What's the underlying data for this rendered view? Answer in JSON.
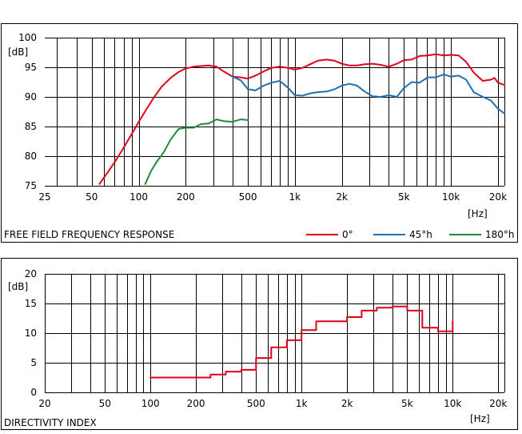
{
  "chart_data": [
    {
      "type": "line",
      "title": "FREE FIELD FREQUENCY RESPONSE",
      "xlabel": "[Hz]",
      "ylabel": "[dB]",
      "x_scale": "log",
      "xlim": [
        25,
        22000
      ],
      "ylim": [
        75,
        100
      ],
      "x_ticks": [
        {
          "v": 25,
          "t": "25"
        },
        {
          "v": 50,
          "t": "50"
        },
        {
          "v": 100,
          "t": "100"
        },
        {
          "v": 200,
          "t": "200"
        },
        {
          "v": 500,
          "t": "500"
        },
        {
          "v": 1000,
          "t": "1k"
        },
        {
          "v": 2000,
          "t": "2k"
        },
        {
          "v": 5000,
          "t": "5k"
        },
        {
          "v": 10000,
          "t": "10k"
        },
        {
          "v": 20000,
          "t": "20k"
        }
      ],
      "y_ticks": [
        75,
        80,
        85,
        90,
        95,
        100
      ],
      "grid": true,
      "legend_position": "bottom-right",
      "series": [
        {
          "name": "0°",
          "color": "#e0001c",
          "points": [
            [
              56,
              75.3
            ],
            [
              63,
              77.2
            ],
            [
              71,
              79.2
            ],
            [
              80,
              81.4
            ],
            [
              90,
              83.7
            ],
            [
              100,
              85.8
            ],
            [
              112,
              87.9
            ],
            [
              125,
              89.9
            ],
            [
              140,
              91.7
            ],
            [
              160,
              93.2
            ],
            [
              180,
              94.2
            ],
            [
              200,
              94.8
            ],
            [
              225,
              95.1
            ],
            [
              250,
              95.2
            ],
            [
              280,
              95.3
            ],
            [
              315,
              95.1
            ],
            [
              350,
              94.3
            ],
            [
              400,
              93.4
            ],
            [
              450,
              93.3
            ],
            [
              500,
              93.1
            ],
            [
              560,
              93.6
            ],
            [
              630,
              94.3
            ],
            [
              710,
              94.9
            ],
            [
              800,
              95.1
            ],
            [
              900,
              94.9
            ],
            [
              1000,
              94.6
            ],
            [
              1120,
              94.9
            ],
            [
              1250,
              95.5
            ],
            [
              1400,
              96.1
            ],
            [
              1600,
              96.3
            ],
            [
              1800,
              96.1
            ],
            [
              2000,
              95.6
            ],
            [
              2240,
              95.3
            ],
            [
              2500,
              95.3
            ],
            [
              2800,
              95.5
            ],
            [
              3150,
              95.6
            ],
            [
              3550,
              95.4
            ],
            [
              4000,
              95.1
            ],
            [
              4500,
              95.6
            ],
            [
              5000,
              96.2
            ],
            [
              5600,
              96.3
            ],
            [
              6300,
              96.9
            ],
            [
              7100,
              97.0
            ],
            [
              8000,
              97.2
            ],
            [
              9000,
              97.0
            ],
            [
              10000,
              97.1
            ],
            [
              11200,
              97.0
            ],
            [
              12500,
              95.9
            ],
            [
              14000,
              94.1
            ],
            [
              16000,
              92.7
            ],
            [
              18000,
              92.9
            ],
            [
              19000,
              93.2
            ],
            [
              20000,
              92.4
            ],
            [
              22000,
              92.0
            ]
          ]
        },
        {
          "name": "45°h",
          "color": "#1f6fb4",
          "points": [
            [
              400,
              93.4
            ],
            [
              450,
              92.8
            ],
            [
              500,
              91.3
            ],
            [
              560,
              91.1
            ],
            [
              630,
              91.9
            ],
            [
              710,
              92.4
            ],
            [
              800,
              92.7
            ],
            [
              900,
              91.6
            ],
            [
              1000,
              90.3
            ],
            [
              1120,
              90.2
            ],
            [
              1250,
              90.6
            ],
            [
              1400,
              90.8
            ],
            [
              1600,
              90.9
            ],
            [
              1800,
              91.3
            ],
            [
              2000,
              91.9
            ],
            [
              2240,
              92.2
            ],
            [
              2500,
              91.9
            ],
            [
              2800,
              90.9
            ],
            [
              3150,
              90.1
            ],
            [
              3550,
              90.0
            ],
            [
              4000,
              90.3
            ],
            [
              4500,
              90.0
            ],
            [
              5000,
              91.5
            ],
            [
              5600,
              92.5
            ],
            [
              6300,
              92.4
            ],
            [
              7100,
              93.3
            ],
            [
              8000,
              93.3
            ],
            [
              9000,
              93.8
            ],
            [
              10000,
              93.4
            ],
            [
              11200,
              93.6
            ],
            [
              12500,
              92.9
            ],
            [
              14000,
              90.8
            ],
            [
              16000,
              90.0
            ],
            [
              18000,
              89.4
            ],
            [
              20000,
              88.0
            ],
            [
              22000,
              87.2
            ]
          ]
        },
        {
          "name": "180°h",
          "color": "#1d8a3c",
          "points": [
            [
              110,
              75.3
            ],
            [
              120,
              77.5
            ],
            [
              130,
              79.0
            ],
            [
              145,
              80.7
            ],
            [
              160,
              82.8
            ],
            [
              180,
              84.6
            ],
            [
              200,
              84.8
            ],
            [
              225,
              84.8
            ],
            [
              250,
              85.4
            ],
            [
              280,
              85.5
            ],
            [
              315,
              86.2
            ],
            [
              350,
              85.9
            ],
            [
              400,
              85.8
            ],
            [
              450,
              86.2
            ],
            [
              500,
              86.1
            ]
          ]
        }
      ]
    },
    {
      "type": "line",
      "title": "DIRECTIVITY INDEX",
      "xlabel": "[Hz]",
      "ylabel": "[dB]",
      "x_scale": "log",
      "xlim": [
        20,
        22000
      ],
      "ylim": [
        0,
        20
      ],
      "x_ticks": [
        {
          "v": 20,
          "t": "20"
        },
        {
          "v": 50,
          "t": "50"
        },
        {
          "v": 100,
          "t": "100"
        },
        {
          "v": 200,
          "t": "200"
        },
        {
          "v": 500,
          "t": "500"
        },
        {
          "v": 1000,
          "t": "1k"
        },
        {
          "v": 2000,
          "t": "2k"
        },
        {
          "v": 5000,
          "t": "5k"
        },
        {
          "v": 10000,
          "t": "10k"
        },
        {
          "v": 20000,
          "t": "20k"
        }
      ],
      "y_ticks": [
        0,
        5,
        10,
        15,
        20
      ],
      "grid": true,
      "series": [
        {
          "color": "#e0001c",
          "step": true,
          "points": [
            [
              100,
              2.5
            ],
            [
              125,
              2.5
            ],
            [
              160,
              2.5
            ],
            [
              200,
              2.5
            ],
            [
              250,
              3.0
            ],
            [
              315,
              3.5
            ],
            [
              400,
              3.8
            ],
            [
              500,
              5.8
            ],
            [
              630,
              7.6
            ],
            [
              800,
              8.8
            ],
            [
              1000,
              10.5
            ],
            [
              1250,
              12.0
            ],
            [
              1600,
              12.0
            ],
            [
              2000,
              12.7
            ],
            [
              2500,
              13.8
            ],
            [
              3150,
              14.3
            ],
            [
              4000,
              14.5
            ],
            [
              5000,
              13.8
            ],
            [
              6300,
              10.9
            ],
            [
              8000,
              10.3
            ],
            [
              10000,
              12.0
            ]
          ]
        }
      ]
    }
  ]
}
